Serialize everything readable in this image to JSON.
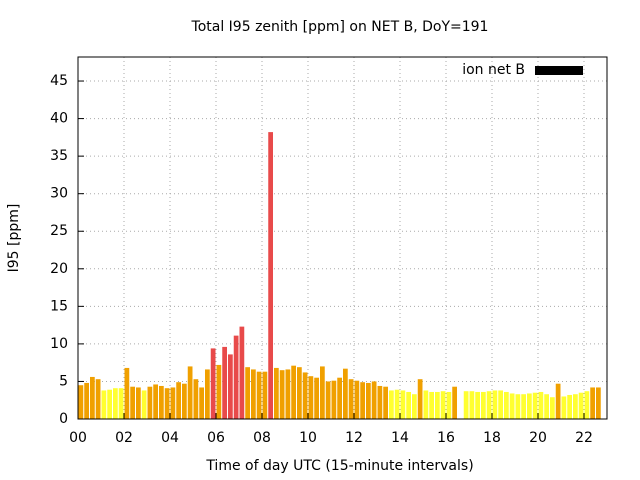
{
  "chart_data": {
    "type": "bar",
    "title": "Total I95 zenith [ppm] on NET B, DoY=191",
    "xlabel": "Time of day UTC (15-minute intervals)",
    "ylabel": "I95 [ppm]",
    "legend": "top-right",
    "series": [
      {
        "name": "ion net B",
        "color": "#000000",
        "x": [
          0,
          0.25,
          0.5,
          0.75,
          1,
          1.25,
          1.5,
          1.75,
          2,
          2.25,
          2.5,
          2.75,
          3,
          3.25,
          3.5,
          3.75,
          4,
          4.25,
          4.5,
          4.75,
          5,
          5.25,
          5.5,
          5.75,
          6,
          6.25,
          6.5,
          6.75,
          7,
          7.25,
          7.5,
          7.75,
          8,
          8.25,
          8.5,
          8.75,
          9,
          9.25,
          9.5,
          9.75,
          10,
          10.25,
          10.5,
          10.75,
          11,
          11.25,
          11.5,
          11.75,
          12,
          12.25,
          12.5,
          12.75,
          13,
          13.25,
          13.5,
          13.75,
          14,
          14.25,
          14.5,
          14.75,
          15,
          15.25,
          15.5,
          15.75,
          16,
          16.25,
          16.75,
          17,
          17.25,
          17.5,
          17.75,
          18,
          18.25,
          18.5,
          18.75,
          19,
          19.25,
          19.5,
          19.75,
          20,
          20.25,
          20.5,
          20.75,
          21,
          21.25,
          21.5,
          21.75,
          22,
          22.25,
          22.5
        ],
        "values": [
          4.5,
          4.8,
          5.6,
          5.3,
          3.8,
          3.9,
          4.1,
          4.1,
          6.8,
          4.3,
          4.2,
          3.8,
          4.3,
          4.6,
          4.4,
          4.1,
          4.2,
          4.9,
          4.7,
          7.0,
          5.3,
          4.2,
          6.6,
          9.4,
          7.2,
          9.6,
          8.6,
          11.1,
          12.3,
          6.9,
          6.6,
          6.3,
          6.3,
          38.2,
          6.8,
          6.5,
          6.6,
          7.1,
          6.9,
          6.2,
          5.7,
          5.5,
          7.0,
          5.0,
          5.1,
          5.5,
          6.7,
          5.3,
          5.1,
          4.9,
          4.8,
          5.0,
          4.4,
          4.3,
          3.8,
          3.9,
          3.8,
          3.6,
          3.3,
          5.3,
          3.8,
          3.6,
          3.6,
          3.7,
          3.6,
          4.3,
          3.7,
          3.7,
          3.6,
          3.6,
          3.7,
          3.8,
          3.8,
          3.6,
          3.4,
          3.3,
          3.3,
          3.4,
          3.5,
          3.6,
          3.3,
          2.9,
          4.7,
          3.0,
          3.2,
          3.3,
          3.5,
          3.7,
          4.2,
          4.2
        ],
        "colors": [
          "#f0a000",
          "#f0a000",
          "#f0a000",
          "#f0a000",
          "#ffff30",
          "#ffff30",
          "#ffff30",
          "#ffff30",
          "#f0a000",
          "#f0a000",
          "#f0a000",
          "#ffff30",
          "#f0a000",
          "#f0a000",
          "#f0a000",
          "#f0a000",
          "#f0a000",
          "#f0a000",
          "#f0a000",
          "#f0a000",
          "#f0a000",
          "#f0a000",
          "#f0a000",
          "#e84a4a",
          "#f0a000",
          "#e84a4a",
          "#e84a4a",
          "#e84a4a",
          "#e84a4a",
          "#f0a000",
          "#f0a000",
          "#f0a000",
          "#f0a000",
          "#e84a4a",
          "#f0a000",
          "#f0a000",
          "#f0a000",
          "#f0a000",
          "#f0a000",
          "#f0a000",
          "#f0a000",
          "#f0a000",
          "#f0a000",
          "#f0a000",
          "#f0a000",
          "#f0a000",
          "#f0a000",
          "#f0a000",
          "#f0a000",
          "#f0a000",
          "#f0a000",
          "#f0a000",
          "#f0a000",
          "#f0a000",
          "#ffff30",
          "#ffff30",
          "#ffff30",
          "#ffff30",
          "#ffff30",
          "#f0a000",
          "#ffff30",
          "#ffff30",
          "#ffff30",
          "#ffff30",
          "#ffff30",
          "#f0a000",
          "#ffff30",
          "#ffff30",
          "#ffff30",
          "#ffff30",
          "#ffff30",
          "#ffff30",
          "#ffff30",
          "#ffff30",
          "#ffff30",
          "#ffff30",
          "#ffff30",
          "#ffff30",
          "#ffff30",
          "#ffff30",
          "#ffff30",
          "#ffff30",
          "#f0a000",
          "#ffff30",
          "#ffff30",
          "#ffff30",
          "#ffff30",
          "#ffff30",
          "#f0a000",
          "#f0a000"
        ]
      }
    ],
    "xlim": [
      0,
      23
    ],
    "xticks": [
      {
        "value": 0,
        "label": "00"
      },
      {
        "value": 2,
        "label": "02"
      },
      {
        "value": 4,
        "label": "04"
      },
      {
        "value": 6,
        "label": "06"
      },
      {
        "value": 8,
        "label": "08"
      },
      {
        "value": 10,
        "label": "10"
      },
      {
        "value": 12,
        "label": "12"
      },
      {
        "value": 14,
        "label": "14"
      },
      {
        "value": 16,
        "label": "16"
      },
      {
        "value": 18,
        "label": "18"
      },
      {
        "value": 20,
        "label": "20"
      },
      {
        "value": 22,
        "label": "22"
      }
    ],
    "ylim": [
      0,
      48.2
    ],
    "yticks": [
      0,
      5,
      10,
      15,
      20,
      25,
      30,
      35,
      40,
      45
    ],
    "grid": true
  }
}
